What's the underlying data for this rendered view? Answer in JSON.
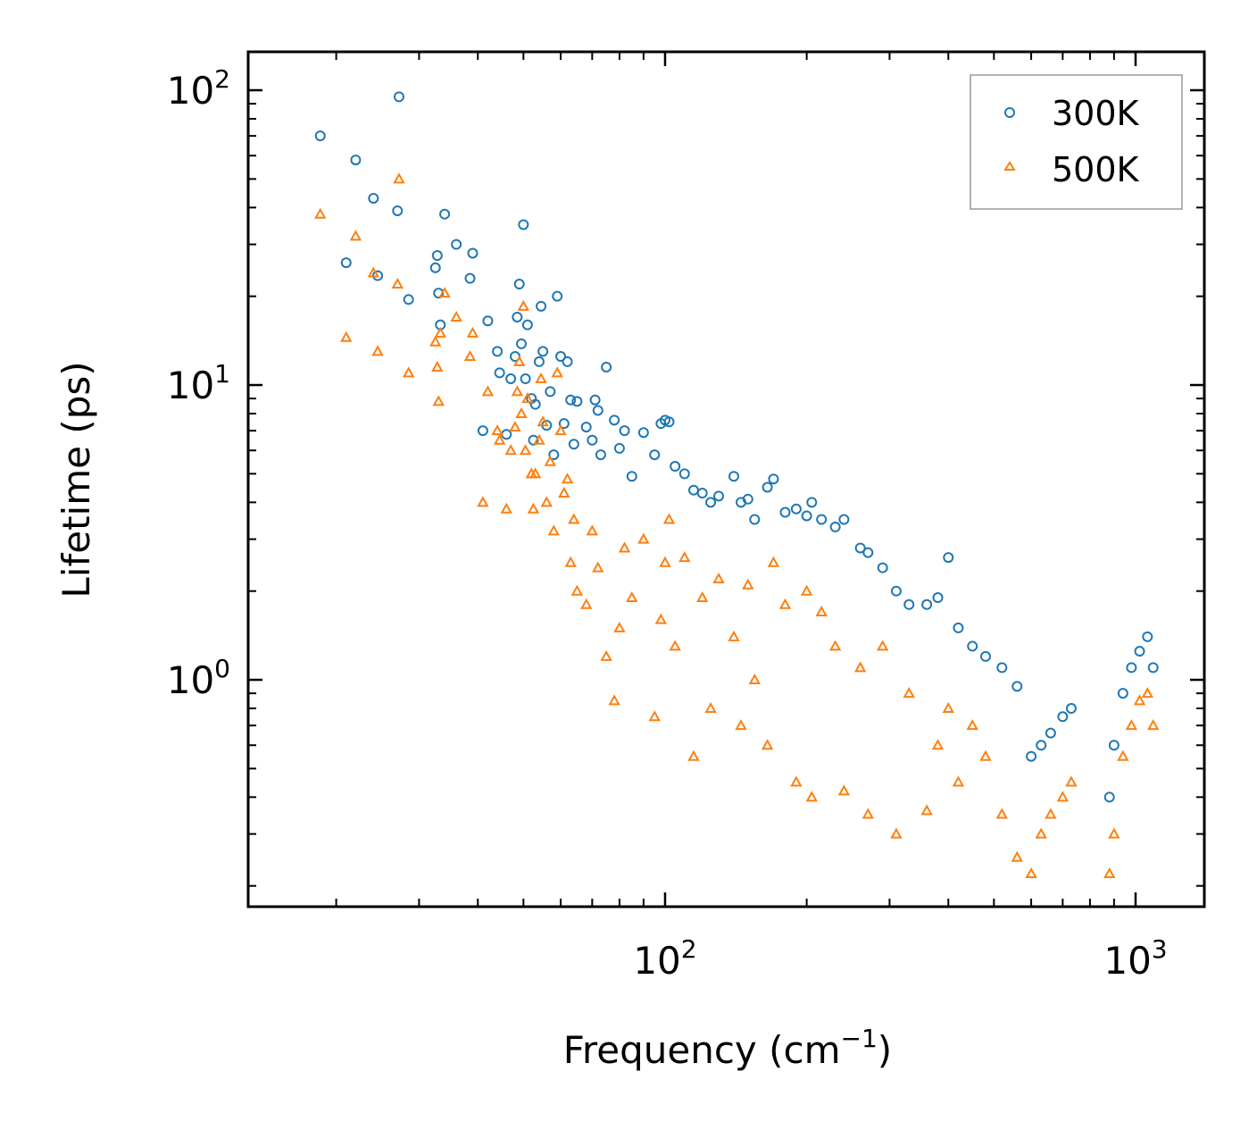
{
  "chart_data": {
    "type": "scatter",
    "xscale": "log",
    "yscale": "log",
    "xlim": [
      13,
      1400
    ],
    "ylim": [
      0.17,
      135
    ],
    "xlabel": "Frequency (cm",
    "xlabel_sup": "−1",
    "xlabel_end": ")",
    "ylabel": "Lifetime (ps)",
    "legend_position": "top-right",
    "x_ticks": [
      {
        "base": "10",
        "exp": "2",
        "value": 100
      },
      {
        "base": "10",
        "exp": "3",
        "value": 1000
      }
    ],
    "y_ticks": [
      {
        "base": "10",
        "exp": "0",
        "value": 1
      },
      {
        "base": "10",
        "exp": "1",
        "value": 10
      },
      {
        "base": "10",
        "exp": "2",
        "value": 100
      }
    ],
    "series": [
      {
        "name": "300K",
        "color": "#1f77b4",
        "marker": "circle",
        "points": [
          [
            18.5,
            70
          ],
          [
            21,
            26
          ],
          [
            22,
            58
          ],
          [
            24,
            43
          ],
          [
            24.5,
            23.5
          ],
          [
            27,
            39
          ],
          [
            27.2,
            95
          ],
          [
            28.5,
            19.5
          ],
          [
            32.5,
            25
          ],
          [
            32.8,
            27.5
          ],
          [
            33,
            20.5
          ],
          [
            33.3,
            16
          ],
          [
            34,
            38
          ],
          [
            36,
            30
          ],
          [
            38.5,
            23
          ],
          [
            39,
            28
          ],
          [
            41,
            7
          ],
          [
            42,
            16.5
          ],
          [
            44,
            13
          ],
          [
            44.5,
            11
          ],
          [
            46,
            6.8
          ],
          [
            47,
            10.5
          ],
          [
            48,
            12.5
          ],
          [
            48.5,
            17
          ],
          [
            49,
            22
          ],
          [
            49.5,
            13.8
          ],
          [
            50,
            35
          ],
          [
            50.5,
            10.5
          ],
          [
            51,
            16
          ],
          [
            52,
            9
          ],
          [
            52.5,
            6.5
          ],
          [
            53,
            8.6
          ],
          [
            54,
            12
          ],
          [
            54.5,
            18.5
          ],
          [
            55,
            13
          ],
          [
            56,
            7.3
          ],
          [
            57,
            9.5
          ],
          [
            58,
            5.8
          ],
          [
            59,
            20
          ],
          [
            60,
            12.5
          ],
          [
            61,
            7.4
          ],
          [
            62,
            12
          ],
          [
            63,
            8.9
          ],
          [
            64,
            6.3
          ],
          [
            65,
            8.8
          ],
          [
            68,
            7.2
          ],
          [
            70,
            6.5
          ],
          [
            71,
            8.9
          ],
          [
            72,
            8.2
          ],
          [
            73,
            5.8
          ],
          [
            75,
            11.5
          ],
          [
            78,
            7.6
          ],
          [
            80,
            6.1
          ],
          [
            82,
            7
          ],
          [
            85,
            4.9
          ],
          [
            90,
            6.9
          ],
          [
            95,
            5.8
          ],
          [
            98,
            7.4
          ],
          [
            100,
            7.6
          ],
          [
            102,
            7.5
          ],
          [
            105,
            5.3
          ],
          [
            110,
            5
          ],
          [
            115,
            4.4
          ],
          [
            120,
            4.3
          ],
          [
            125,
            4
          ],
          [
            130,
            4.2
          ],
          [
            140,
            4.9
          ],
          [
            145,
            4
          ],
          [
            150,
            4.1
          ],
          [
            155,
            3.5
          ],
          [
            165,
            4.5
          ],
          [
            170,
            4.8
          ],
          [
            180,
            3.7
          ],
          [
            190,
            3.8
          ],
          [
            200,
            3.6
          ],
          [
            205,
            4
          ],
          [
            215,
            3.5
          ],
          [
            230,
            3.3
          ],
          [
            240,
            3.5
          ],
          [
            260,
            2.8
          ],
          [
            270,
            2.7
          ],
          [
            290,
            2.4
          ],
          [
            310,
            2
          ],
          [
            330,
            1.8
          ],
          [
            360,
            1.8
          ],
          [
            380,
            1.9
          ],
          [
            400,
            2.6
          ],
          [
            420,
            1.5
          ],
          [
            450,
            1.3
          ],
          [
            480,
            1.2
          ],
          [
            520,
            1.1
          ],
          [
            560,
            0.95
          ],
          [
            600,
            0.55
          ],
          [
            630,
            0.6
          ],
          [
            660,
            0.66
          ],
          [
            700,
            0.75
          ],
          [
            730,
            0.8
          ],
          [
            880,
            0.4
          ],
          [
            900,
            0.6
          ],
          [
            940,
            0.9
          ],
          [
            980,
            1.1
          ],
          [
            1020,
            1.25
          ],
          [
            1060,
            1.4
          ],
          [
            1090,
            1.1
          ]
        ]
      },
      {
        "name": "500K",
        "color": "#ff7f0e",
        "marker": "triangle",
        "points": [
          [
            18.5,
            38
          ],
          [
            21,
            14.5
          ],
          [
            22,
            32
          ],
          [
            24,
            24
          ],
          [
            24.5,
            13
          ],
          [
            27,
            22
          ],
          [
            27.2,
            50
          ],
          [
            28.5,
            11
          ],
          [
            32.5,
            14
          ],
          [
            32.8,
            11.5
          ],
          [
            33,
            8.8
          ],
          [
            33.3,
            15
          ],
          [
            34,
            20.5
          ],
          [
            36,
            17
          ],
          [
            38.5,
            12.5
          ],
          [
            39,
            15
          ],
          [
            41,
            4
          ],
          [
            42,
            9.5
          ],
          [
            44,
            7
          ],
          [
            44.5,
            6.5
          ],
          [
            46,
            3.8
          ],
          [
            47,
            6
          ],
          [
            48,
            7.2
          ],
          [
            48.5,
            9.5
          ],
          [
            49,
            12
          ],
          [
            49.5,
            8
          ],
          [
            50,
            18.5
          ],
          [
            50.5,
            6
          ],
          [
            51,
            9
          ],
          [
            52,
            5
          ],
          [
            52.5,
            3.8
          ],
          [
            53,
            5
          ],
          [
            54,
            6.5
          ],
          [
            54.5,
            10.5
          ],
          [
            55,
            7.5
          ],
          [
            56,
            4
          ],
          [
            57,
            5.5
          ],
          [
            58,
            3.2
          ],
          [
            59,
            11
          ],
          [
            60,
            7
          ],
          [
            61,
            4.3
          ],
          [
            62,
            4.8
          ],
          [
            63,
            2.5
          ],
          [
            64,
            3.5
          ],
          [
            65,
            2
          ],
          [
            68,
            1.8
          ],
          [
            70,
            3.2
          ],
          [
            72,
            2.4
          ],
          [
            75,
            1.2
          ],
          [
            78,
            0.85
          ],
          [
            80,
            1.5
          ],
          [
            82,
            2.8
          ],
          [
            85,
            1.9
          ],
          [
            90,
            3
          ],
          [
            95,
            0.75
          ],
          [
            98,
            1.6
          ],
          [
            100,
            2.5
          ],
          [
            102,
            3.5
          ],
          [
            105,
            1.3
          ],
          [
            110,
            2.6
          ],
          [
            115,
            0.55
          ],
          [
            120,
            1.9
          ],
          [
            125,
            0.8
          ],
          [
            130,
            2.2
          ],
          [
            140,
            1.4
          ],
          [
            145,
            0.7
          ],
          [
            150,
            2.1
          ],
          [
            155,
            1
          ],
          [
            165,
            0.6
          ],
          [
            170,
            2.5
          ],
          [
            180,
            1.8
          ],
          [
            190,
            0.45
          ],
          [
            200,
            2
          ],
          [
            205,
            0.4
          ],
          [
            215,
            1.7
          ],
          [
            230,
            1.3
          ],
          [
            240,
            0.42
          ],
          [
            260,
            1.1
          ],
          [
            270,
            0.35
          ],
          [
            290,
            1.3
          ],
          [
            310,
            0.3
          ],
          [
            330,
            0.9
          ],
          [
            360,
            0.36
          ],
          [
            380,
            0.6
          ],
          [
            400,
            0.8
          ],
          [
            420,
            0.45
          ],
          [
            450,
            0.7
          ],
          [
            480,
            0.55
          ],
          [
            520,
            0.35
          ],
          [
            560,
            0.25
          ],
          [
            600,
            0.22
          ],
          [
            630,
            0.3
          ],
          [
            660,
            0.35
          ],
          [
            700,
            0.4
          ],
          [
            730,
            0.45
          ],
          [
            880,
            0.22
          ],
          [
            900,
            0.3
          ],
          [
            940,
            0.55
          ],
          [
            980,
            0.7
          ],
          [
            1020,
            0.85
          ],
          [
            1060,
            0.9
          ],
          [
            1090,
            0.7
          ]
        ]
      }
    ]
  }
}
